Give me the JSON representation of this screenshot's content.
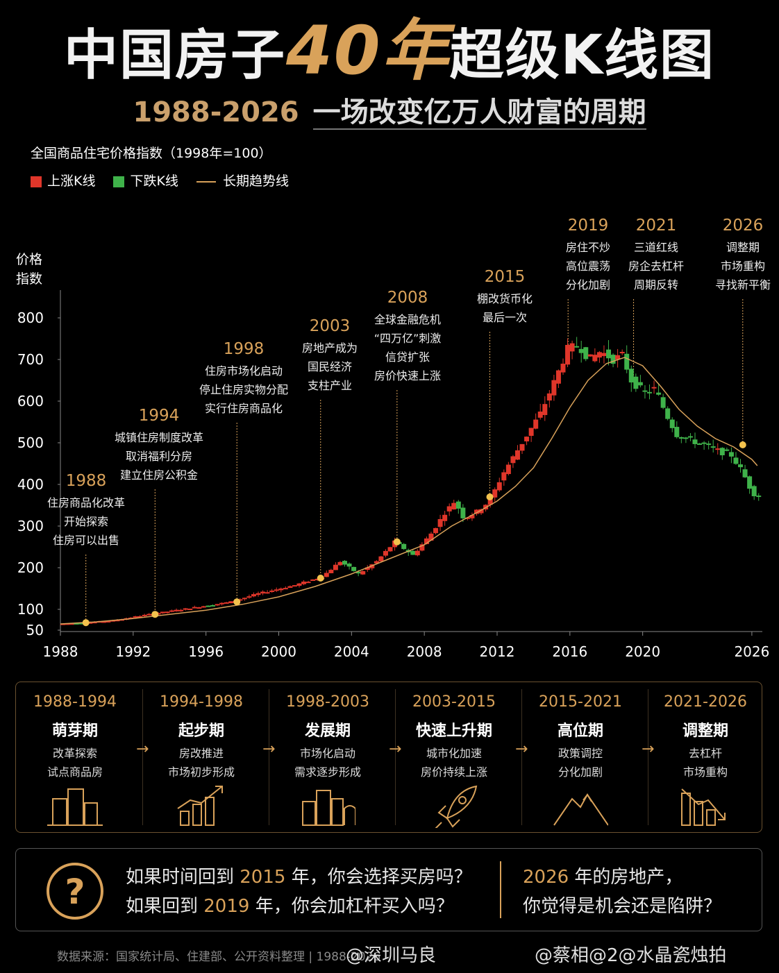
{
  "title": {
    "part1": "中国房子",
    "part2": "40年",
    "part3": "超级K线图"
  },
  "subtitle": {
    "years": "1988-2026",
    "text": "一场改变亿万人财富的周期"
  },
  "index_note": "全国商品住宅价格指数（1998年=100）",
  "legend": {
    "up": "上涨K线",
    "down": "下跌K线",
    "trend": "长期趋势线"
  },
  "colors": {
    "up": "#e0362a",
    "down": "#3fb24a",
    "trend": "#d9a25a",
    "gold": "#d9a25a"
  },
  "chart_data": {
    "type": "candlestick",
    "ylabel": "价格\n指数",
    "ylabel_line1": "价格",
    "ylabel_line2": "指数",
    "ylim": [
      50,
      850
    ],
    "xlim": [
      1988,
      2026.5
    ],
    "yticks": [
      50,
      100,
      200,
      300,
      400,
      500,
      600,
      700,
      800
    ],
    "xticks": [
      1988,
      1992,
      1996,
      2000,
      2004,
      2008,
      2012,
      2016,
      2020,
      2026
    ],
    "trend": [
      [
        1988,
        65
      ],
      [
        1990,
        70
      ],
      [
        1992,
        78
      ],
      [
        1994,
        88
      ],
      [
        1996,
        98
      ],
      [
        1998,
        112
      ],
      [
        2000,
        130
      ],
      [
        2002,
        155
      ],
      [
        2004,
        185
      ],
      [
        2006,
        220
      ],
      [
        2008,
        255
      ],
      [
        2009.5,
        300
      ],
      [
        2011,
        335
      ],
      [
        2012,
        360
      ],
      [
        2013,
        395
      ],
      [
        2014,
        440
      ],
      [
        2015,
        510
      ],
      [
        2016,
        585
      ],
      [
        2017,
        650
      ],
      [
        2018,
        690
      ],
      [
        2019,
        705
      ],
      [
        2020,
        685
      ],
      [
        2021,
        635
      ],
      [
        2022,
        580
      ],
      [
        2023,
        540
      ],
      [
        2024,
        510
      ],
      [
        2025,
        490
      ],
      [
        2026,
        460
      ],
      [
        2026.3,
        445
      ]
    ],
    "anchors": [
      [
        1988,
        65
      ],
      [
        1989.5,
        68
      ],
      [
        1991,
        73
      ],
      [
        1993,
        88
      ],
      [
        1994.5,
        98
      ],
      [
        1996,
        108
      ],
      [
        1997.5,
        118
      ],
      [
        1999,
        138
      ],
      [
        2001,
        158
      ],
      [
        2002.5,
        178
      ],
      [
        2003.5,
        215
      ],
      [
        2004.5,
        185
      ],
      [
        2005.5,
        215
      ],
      [
        2006.5,
        262
      ],
      [
        2007.5,
        230
      ],
      [
        2008.5,
        282
      ],
      [
        2009.3,
        335
      ],
      [
        2009.8,
        360
      ],
      [
        2010.3,
        318
      ],
      [
        2011,
        335
      ],
      [
        2011.7,
        360
      ],
      [
        2012.5,
        430
      ],
      [
        2013.5,
        500
      ],
      [
        2014.5,
        570
      ],
      [
        2015.3,
        650
      ],
      [
        2016,
        725
      ],
      [
        2016.6,
        735
      ],
      [
        2017.2,
        700
      ],
      [
        2017.8,
        720
      ],
      [
        2018.5,
        700
      ],
      [
        2019,
        710
      ],
      [
        2019.5,
        650
      ],
      [
        2020.2,
        620
      ],
      [
        2020.8,
        630
      ],
      [
        2021.4,
        570
      ],
      [
        2022,
        520
      ],
      [
        2022.8,
        505
      ],
      [
        2023.5,
        495
      ],
      [
        2024.3,
        480
      ],
      [
        2025,
        470
      ],
      [
        2025.6,
        430
      ],
      [
        2026.1,
        385
      ],
      [
        2026.3,
        375
      ]
    ],
    "markers": [
      [
        1989.4,
        68
      ],
      [
        1993.2,
        88
      ],
      [
        1997.7,
        118
      ],
      [
        2002.3,
        175
      ],
      [
        2006.5,
        262
      ],
      [
        2011.6,
        370
      ],
      [
        2025.5,
        495
      ]
    ],
    "annotations": [
      {
        "year": "1988",
        "x": 1989.4,
        "y": 68,
        "lines": [
          "住房商品化改革",
          "开始探索",
          "住房可以出售"
        ]
      },
      {
        "year": "1994",
        "x": 1993.2,
        "y": 88,
        "lines": [
          "城镇住房制度改革",
          "取消福利分房",
          "建立住房公积金"
        ]
      },
      {
        "year": "1998",
        "x": 1997.7,
        "y": 118,
        "lines": [
          "住房市场化启动",
          "停止住房实物分配",
          "实行住房商品化"
        ]
      },
      {
        "year": "2003",
        "x": 2002.3,
        "y": 175,
        "lines": [
          "房地产成为",
          "国民经济",
          "支柱产业"
        ]
      },
      {
        "year": "2008",
        "x": 2006.5,
        "y": 262,
        "lines": [
          "全球金融危机",
          "“四万亿”刺激",
          "信贷扩张",
          "房价快速上涨"
        ]
      },
      {
        "year": "2015",
        "x": 2011.6,
        "y": 370,
        "lines": [
          "棚改货币化",
          "最后一次"
        ]
      },
      {
        "year": "2019",
        "x": 2015.9,
        "y": 720,
        "lines": [
          "房住不炒",
          "高位震荡",
          "分化加剧"
        ]
      },
      {
        "year": "2021",
        "x": 2019.5,
        "y": 650,
        "lines": [
          "三道红线",
          "房企去杠杆",
          "周期反转"
        ]
      },
      {
        "year": "2026",
        "x": 2025.5,
        "y": 495,
        "lines": [
          "调整期",
          "市场重构",
          "寻找新平衡"
        ]
      }
    ]
  },
  "phases": [
    {
      "years": "1988-1994",
      "name": "萌芽期",
      "d1": "改革探索",
      "d2": "试点商品房",
      "icon": "buildings-icon"
    },
    {
      "years": "1994-1998",
      "name": "起步期",
      "d1": "房改推进",
      "d2": "市场初步形成",
      "icon": "growth-chart-icon"
    },
    {
      "years": "1998-2003",
      "name": "发展期",
      "d1": "市场化启动",
      "d2": "需求逐步形成",
      "icon": "city-icon"
    },
    {
      "years": "2003-2015",
      "name": "快速上升期",
      "d1": "城市化加速",
      "d2": "房价持续上涨",
      "icon": "rocket-icon"
    },
    {
      "years": "2015-2021",
      "name": "高位期",
      "d1": "政策调控",
      "d2": "分化加剧",
      "icon": "mountain-icon"
    },
    {
      "years": "2021-2026",
      "name": "调整期",
      "d1": "去杠杆",
      "d2": "市场重构",
      "icon": "decline-chart-icon"
    }
  ],
  "questions": {
    "q1_pre": "如果时间回到 ",
    "q1_year": "2015",
    "q1_post": " 年，你会选择买房吗？",
    "q2_pre": "如果回到 ",
    "q2_year": "2019",
    "q2_post": " 年，你会加杠杆买入吗？",
    "q3_year": "2026",
    "q3_post": " 年的房地产，",
    "q4": "你觉得是机会还是陷阱？"
  },
  "source": "数据来源：国家统计局、住建部、公开资料整理 | 1988-2026",
  "watermarks": {
    "w1": "@深圳马良",
    "w2": "@蔡相@2@水晶瓷烛拍"
  }
}
